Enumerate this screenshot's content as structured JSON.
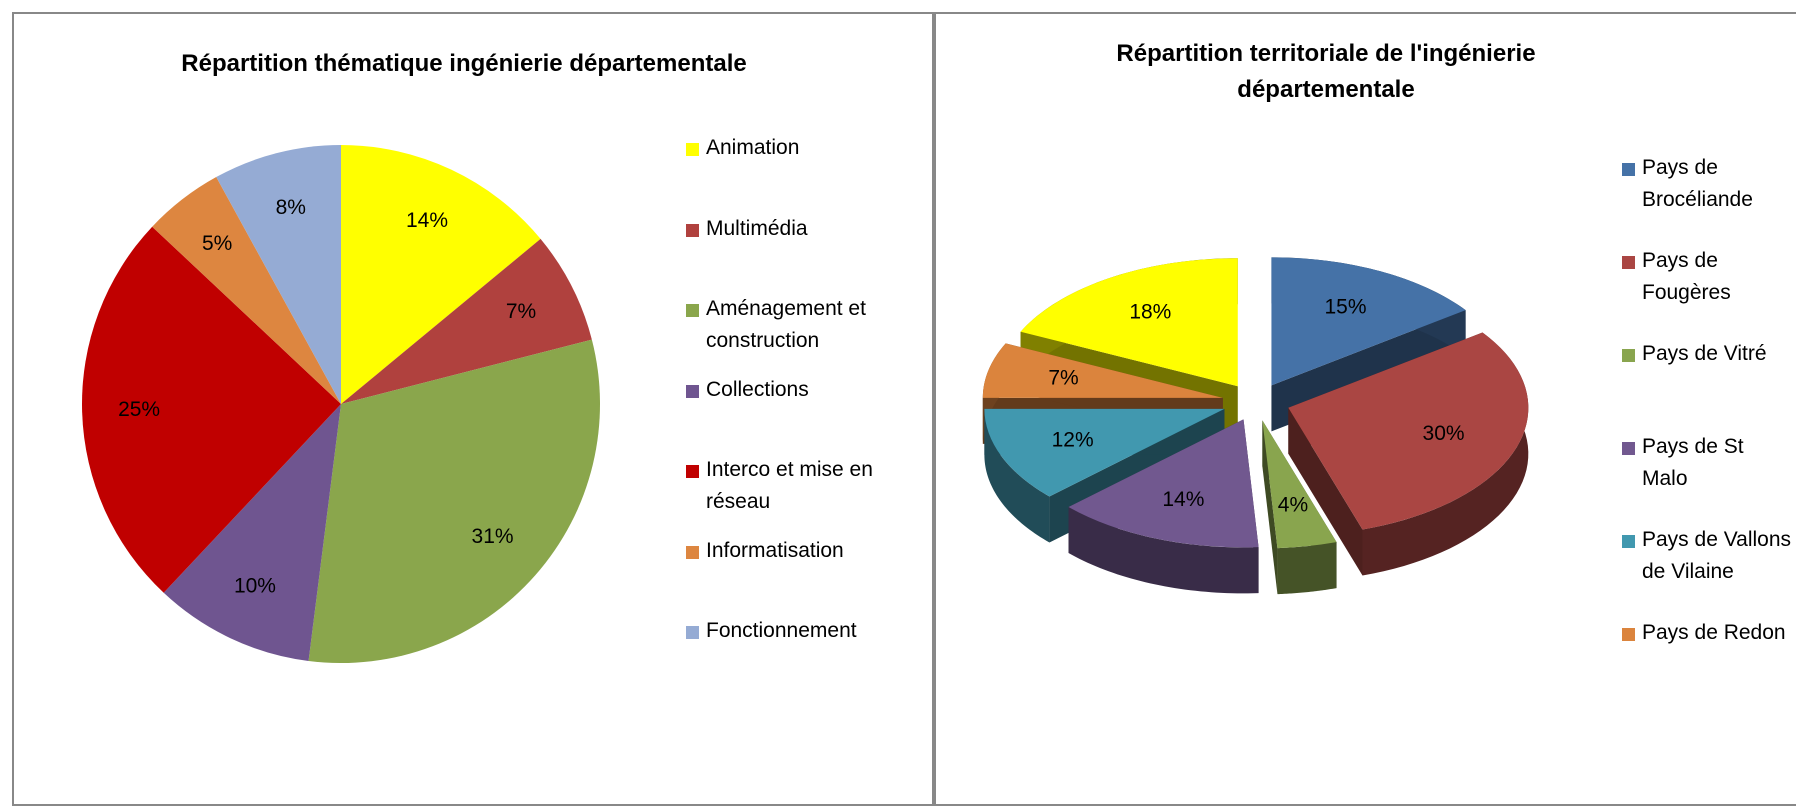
{
  "chart_data": [
    {
      "type": "pie",
      "title": "Répartition thématique ingénierie départementale",
      "categories": [
        "Animation",
        "Multimédia",
        "Aménagement et construction",
        "Collections",
        "Interco et mise en réseau",
        "Informatisation",
        "Fonctionnement"
      ],
      "values": [
        14,
        7,
        31,
        10,
        25,
        5,
        8
      ],
      "value_labels": [
        "14%",
        "7%",
        "31%",
        "10%",
        "25%",
        "5%",
        "8%"
      ],
      "colors": [
        "#ffff00",
        "#b0413e",
        "#8aa64c",
        "#6f5590",
        "#c00000",
        "#dd8640",
        "#95abd4"
      ],
      "legend": "right"
    },
    {
      "type": "pie3d",
      "title": "Répartition  territoriale de  l'ingénierie départementale",
      "categories": [
        "Pays de Brocéliande",
        "Pays de Fougères",
        "Pays de Vitré",
        "Pays de St Malo",
        "Pays de Vallons de Vilaine",
        "Pays de Redon",
        null
      ],
      "values": [
        15,
        30,
        4,
        14,
        12,
        7,
        18
      ],
      "value_labels": [
        "15%",
        "30%",
        "4%",
        "14%",
        "12%",
        "7%",
        "18%"
      ],
      "colors": [
        "#4572a7",
        "#aa4643",
        "#89a54e",
        "#71588f",
        "#4198af",
        "#db843d",
        "#ffff00"
      ],
      "legend": "right"
    }
  ]
}
